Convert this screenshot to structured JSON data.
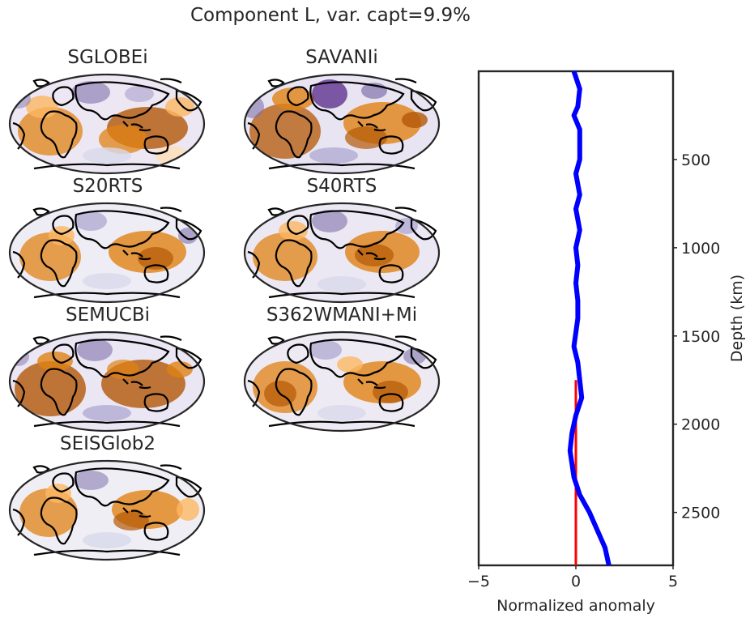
{
  "title": "Component L, var. capt=9.9%",
  "maps": [
    {
      "name": "SGLOBEi"
    },
    {
      "name": "SAVANIi"
    },
    {
      "name": "S20RTS"
    },
    {
      "name": "S40RTS"
    },
    {
      "name": "SEMUCBi"
    },
    {
      "name": "S362WMANI+Mi"
    },
    {
      "name": "SEISGlob2"
    }
  ],
  "colors": {
    "positive": "#b35806",
    "negative": "#542788",
    "profile_line": "#0000ff",
    "zero_line": "#ff0000",
    "coastline": "#000000"
  },
  "chart_data": {
    "type": "line",
    "title": "",
    "xlabel": "Normalized anomaly",
    "ylabel": "Depth (km)",
    "xlim": [
      -5,
      5
    ],
    "ylim": [
      2800,
      0
    ],
    "xticks": [
      -5,
      0,
      5
    ],
    "yticks": [
      500,
      1000,
      1500,
      2000,
      2500
    ],
    "grid": false,
    "yaxis_side": "right",
    "series": [
      {
        "values": [
          {
            "x": -0.1,
            "y": 0
          },
          {
            "x": 0.2,
            "y": 100
          },
          {
            "x": 0.1,
            "y": 200
          },
          {
            "x": -0.1,
            "y": 250
          },
          {
            "x": 0.2,
            "y": 330
          },
          {
            "x": 0.2,
            "y": 500
          },
          {
            "x": 0.0,
            "y": 580
          },
          {
            "x": 0.2,
            "y": 700
          },
          {
            "x": 0.0,
            "y": 780
          },
          {
            "x": 0.2,
            "y": 900
          },
          {
            "x": 0.0,
            "y": 1000
          },
          {
            "x": 0.1,
            "y": 1100
          },
          {
            "x": 0.0,
            "y": 1200
          },
          {
            "x": 0.1,
            "y": 1300
          },
          {
            "x": 0.1,
            "y": 1400
          },
          {
            "x": -0.1,
            "y": 1560
          },
          {
            "x": 0.1,
            "y": 1650
          },
          {
            "x": 0.2,
            "y": 1750
          },
          {
            "x": 0.3,
            "y": 1850
          },
          {
            "x": 0.0,
            "y": 1950
          },
          {
            "x": -0.2,
            "y": 2050
          },
          {
            "x": -0.3,
            "y": 2150
          },
          {
            "x": -0.1,
            "y": 2300
          },
          {
            "x": 0.2,
            "y": 2400
          },
          {
            "x": 0.7,
            "y": 2500
          },
          {
            "x": 1.1,
            "y": 2600
          },
          {
            "x": 1.5,
            "y": 2700
          },
          {
            "x": 1.7,
            "y": 2800
          }
        ]
      },
      {
        "values": [
          {
            "x": 0,
            "y": 1750
          },
          {
            "x": 0,
            "y": 2800
          }
        ]
      }
    ]
  }
}
